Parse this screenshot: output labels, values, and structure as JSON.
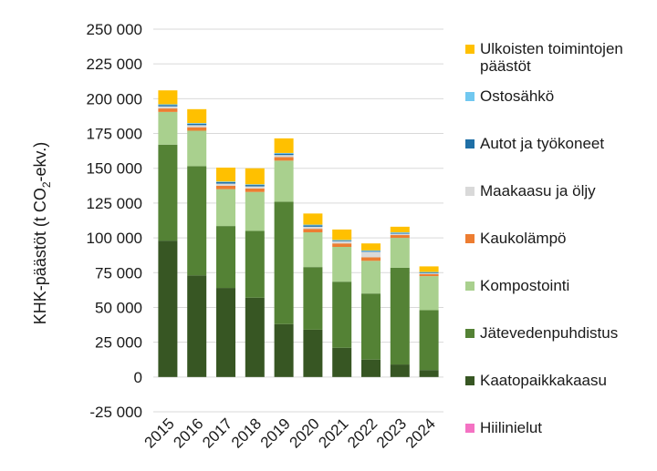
{
  "chart_data": {
    "type": "stacked-bar",
    "ylabel": "KHK-päästöt (t CO₂-ekv.)",
    "ylabel_parts": {
      "pre": "KHK-päästöt (t CO",
      "sub": "2",
      "post": "-ekv.)"
    },
    "ylim": [
      -25000,
      250000
    ],
    "yticks": [
      -25000,
      0,
      25000,
      50000,
      75000,
      100000,
      125000,
      150000,
      175000,
      200000,
      225000,
      250000
    ],
    "ytick_labels": [
      "-25 000",
      "0",
      "25 000",
      "50 000",
      "75 000",
      "100 000",
      "125 000",
      "150 000",
      "175 000",
      "200 000",
      "225 000",
      "250 000"
    ],
    "grid": true,
    "legend_position": "right",
    "categories": [
      "2015",
      "2016",
      "2017",
      "2018",
      "2019",
      "2020",
      "2021",
      "2022",
      "2023",
      "2024"
    ],
    "series": [
      {
        "name": "Kaatopaikkakaasu",
        "color": "#375623",
        "values": [
          98000,
          73000,
          64000,
          57000,
          38000,
          34000,
          21000,
          12500,
          9000,
          5000
        ]
      },
      {
        "name": "Jätevedenpuhdistus",
        "color": "#548235",
        "values": [
          69000,
          78500,
          44500,
          48000,
          88000,
          45000,
          47500,
          47500,
          69500,
          43000
        ]
      },
      {
        "name": "Kompostointi",
        "color": "#a9d08e",
        "values": [
          23500,
          25500,
          26500,
          28000,
          29500,
          25000,
          25000,
          23500,
          21500,
          24500
        ]
      },
      {
        "name": "Kaukolämpö",
        "color": "#ed7d31",
        "values": [
          2500,
          2500,
          2500,
          2500,
          2500,
          2500,
          2500,
          2500,
          2000,
          1500
        ]
      },
      {
        "name": "Maakaasu ja öljy",
        "color": "#d9d9d9",
        "values": [
          1500,
          1500,
          1500,
          1500,
          1500,
          1500,
          1500,
          4000,
          1000,
          500
        ]
      },
      {
        "name": "Autot ja työkoneet",
        "color": "#1f6fa6",
        "values": [
          1000,
          1000,
          1000,
          1000,
          1000,
          1000,
          500,
          500,
          500,
          500
        ]
      },
      {
        "name": "Ostosähkö",
        "color": "#71c8f0",
        "values": [
          500,
          500,
          500,
          500,
          500,
          500,
          500,
          500,
          500,
          500
        ]
      },
      {
        "name": "Ulkoisten toimintojen päästöt",
        "color": "#ffc000",
        "values": [
          10000,
          10000,
          10000,
          11500,
          10500,
          8000,
          7500,
          5000,
          4000,
          4000
        ]
      },
      {
        "name": "Hiilinielut",
        "color": "#f472c3",
        "values": [
          0,
          0,
          0,
          0,
          0,
          0,
          0,
          0,
          0,
          0
        ]
      }
    ],
    "legend_order": [
      "Ulkoisten toimintojen päästöt",
      "Ostosähkö",
      "Autot ja työkoneet",
      "Maakaasu ja öljy",
      "Kaukolämpö",
      "Kompostointi",
      "Jätevedenpuhdistus",
      "Kaatopaikkakaasu",
      "Hiilinielut"
    ]
  }
}
